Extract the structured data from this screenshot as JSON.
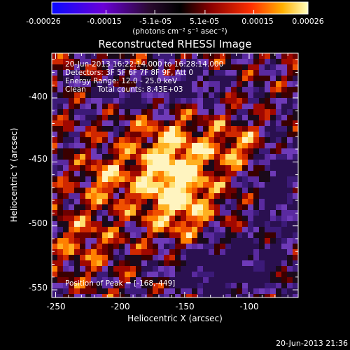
{
  "colorbar": {
    "ticks": [
      "-0.00026",
      "-0.00015",
      "-5.1e-05",
      "5.1e-05",
      "0.00015",
      "0.00026"
    ],
    "units_label": "(photons cm⁻² s⁻¹ asec⁻²)",
    "range": [
      -0.00026,
      0.00026
    ]
  },
  "chart_data": {
    "type": "heatmap",
    "title": "Reconstructed RHESSI Image",
    "xlabel": "Heliocentric X (arcsec)",
    "ylabel": "Heliocentric Y (arcsec)",
    "xlim": [
      -253,
      -62
    ],
    "ylim": [
      -556,
      -365
    ],
    "x_ticks": [
      -250,
      -200,
      -150,
      -100
    ],
    "y_ticks": [
      -550,
      -500,
      -450,
      -400
    ],
    "annotations": {
      "time": "20-Jun-2013 16:22:14.000 to 16:28:14.000",
      "detectors": "Detectors: 3F 5F 6F 7F 8F 9F, Att 0",
      "energy": "Energy Range: 12.0 - 25.0 keV",
      "method": "Clean     Total counts: 8.43E+03",
      "peak": "Position of Peak = [-168,-449]"
    },
    "peak_position": [
      -168,
      -449
    ]
  },
  "footer": {
    "timestamp": "20-Jun-2013 21:36"
  }
}
